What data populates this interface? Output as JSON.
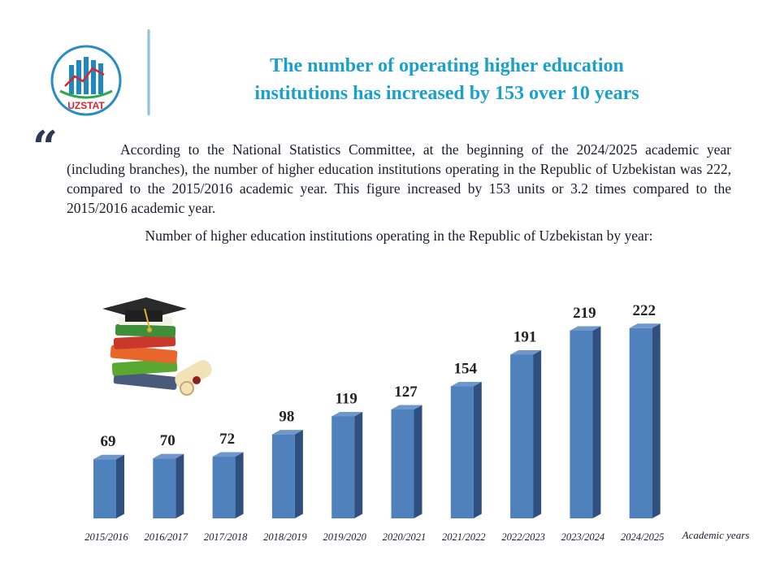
{
  "logo": {
    "text": "UZSTAT",
    "colors": {
      "ring": "#2a8cc4",
      "bars": "#1e88c0",
      "arrow": "#d9262b",
      "text": "#d9262b"
    }
  },
  "header": {
    "title_line1": "The number of operating higher education",
    "title_line2": "institutions has increased by 153 over 10 years"
  },
  "body": {
    "quote_mark": "“",
    "paragraph": "According to the National Statistics Committee, at the beginning of the 2024/2025 academic year (including branches), the number of higher education institutions operating in the Republic of Uzbekistan was 222, compared to the 2015/2016 academic year. This figure increased by 153 units or 3.2 times compared to the 2015/2016 academic year.",
    "chart_caption": "Number of higher education institutions operating in the Republic of Uzbekistan by year:"
  },
  "illustration": {
    "icon": "graduation-cap-and-books-icon"
  },
  "chart_data": {
    "type": "bar",
    "title": "Number of higher education institutions operating in the Republic of Uzbekistan by year:",
    "categories": [
      "2015/2016",
      "2016/2017",
      "2017/2018",
      "2018/2019",
      "2019/2020",
      "2020/2021",
      "2021/2022",
      "2022/2023",
      "2023/2024",
      "2024/2025"
    ],
    "values": [
      69,
      70,
      72,
      98,
      119,
      127,
      154,
      191,
      219,
      222
    ],
    "xlabel": "Academic years",
    "ylabel": "",
    "ylim": [
      0,
      240
    ],
    "grid": false,
    "legend": "none",
    "bar_color": "#4f81bd",
    "bar_side_color": "#2f4f7f",
    "bar_top_color": "#6f97cc"
  }
}
